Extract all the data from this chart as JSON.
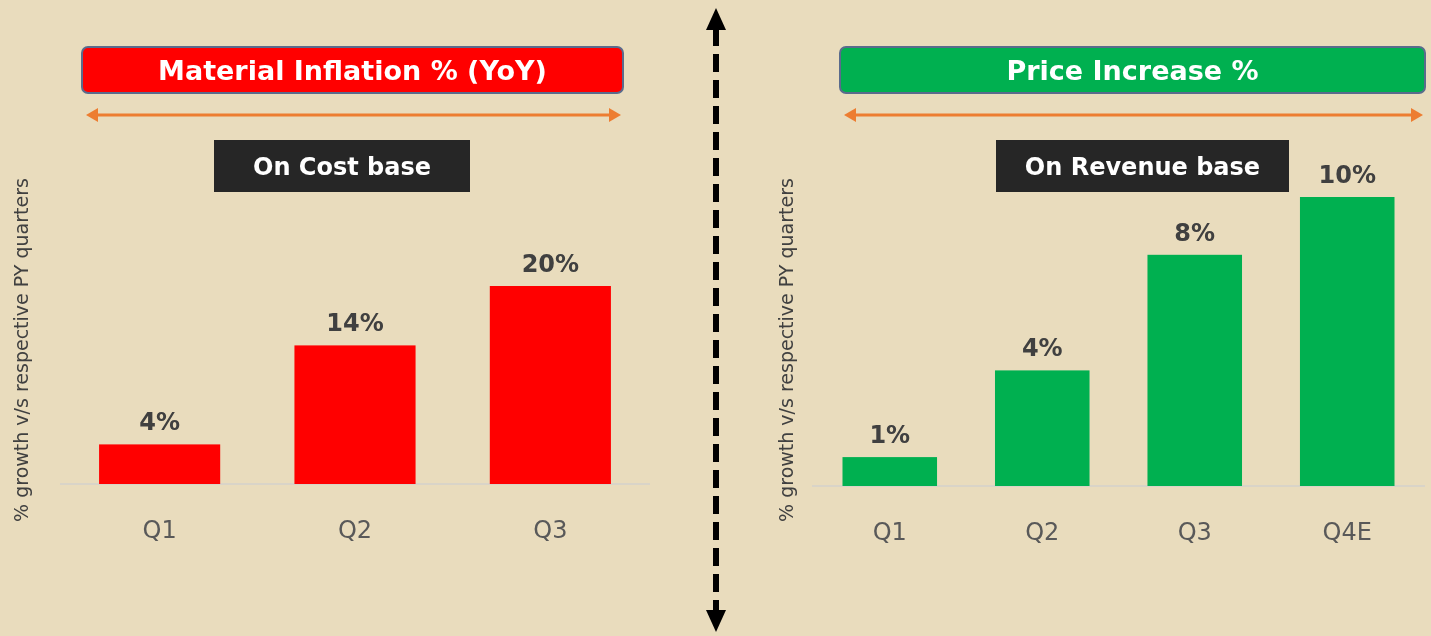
{
  "chart_data": [
    {
      "type": "bar",
      "title": "Material Inflation % (YoY)",
      "subtitle": "On Cost base",
      "ylabel": "% growth v/s respective PY quarters",
      "categories": [
        "Q1",
        "Q2",
        "Q3"
      ],
      "values": [
        4,
        14,
        20
      ],
      "value_labels": [
        "4%",
        "14%",
        "20%"
      ],
      "color": "#ff0000"
    },
    {
      "type": "bar",
      "title": "Price Increase %",
      "subtitle": "On Revenue base",
      "ylabel": "% growth v/s respective PY quarters",
      "categories": [
        "Q1",
        "Q2",
        "Q3",
        "Q4E"
      ],
      "values": [
        1,
        4,
        8,
        10
      ],
      "value_labels": [
        "1%",
        "4%",
        "8%",
        "10%"
      ],
      "color": "#00b050"
    }
  ]
}
